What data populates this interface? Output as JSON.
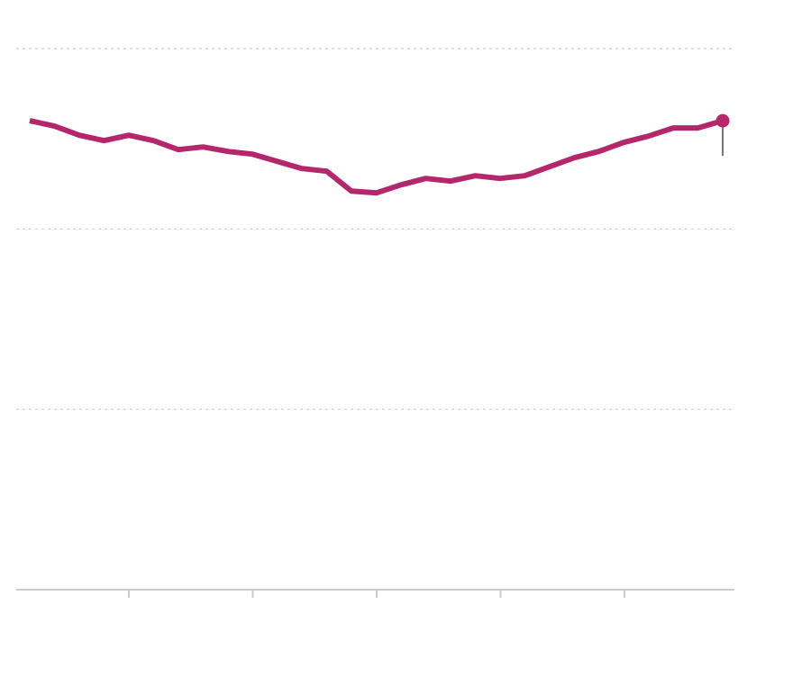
{
  "chart_data": {
    "type": "line",
    "title": "",
    "xlabel": "",
    "ylabel": "",
    "grid": true,
    "ylim": [
      0,
      3
    ],
    "x_ticks_count": 5,
    "series": [
      {
        "values": [
          2.6,
          2.57,
          2.52,
          2.49,
          2.52,
          2.49,
          2.44,
          2.455,
          2.43,
          2.415,
          2.375,
          2.335,
          2.32,
          2.21,
          2.2,
          2.245,
          2.28,
          2.265,
          2.295,
          2.28,
          2.295,
          2.345,
          2.395,
          2.43,
          2.48,
          2.515,
          2.56,
          2.56,
          2.6
        ],
        "color": "#b5276b",
        "last_point_marker": true
      }
    ]
  }
}
